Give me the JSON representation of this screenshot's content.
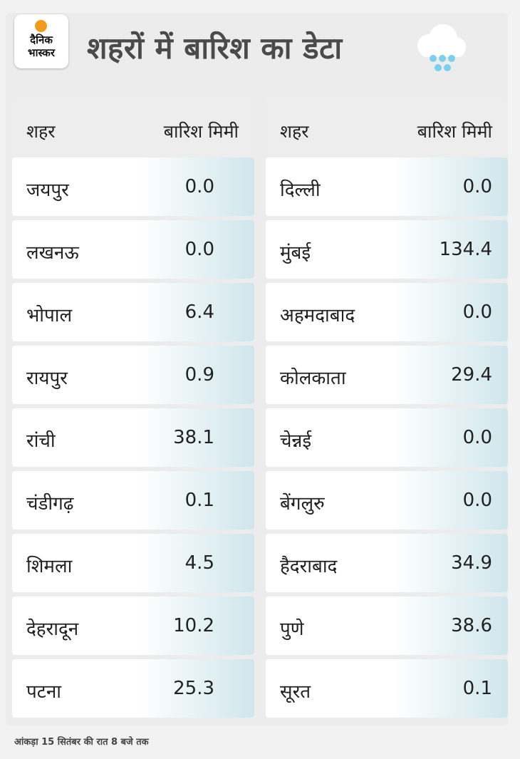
{
  "logo": {
    "line1": "दैनिक",
    "line2": "भास्कर"
  },
  "title": "शहरों में बारिश का डेटा",
  "colors": {
    "accent_orange": "#f39a1e",
    "cloud": "#ffffff",
    "rain_drops": "#7ad0ee",
    "cell_tint": "#cfe6ec"
  },
  "tables": [
    {
      "header_city": "शहर",
      "header_rain": "बारिश मिमी",
      "rows": [
        {
          "city": "जयपुर",
          "rain": "0.0"
        },
        {
          "city": "लखनऊ",
          "rain": "0.0"
        },
        {
          "city": "भोपाल",
          "rain": "6.4"
        },
        {
          "city": "रायपुर",
          "rain": "0.9"
        },
        {
          "city": "रांची",
          "rain": "38.1"
        },
        {
          "city": "चंडीगढ़",
          "rain": "0.1"
        },
        {
          "city": "शिमला",
          "rain": "4.5"
        },
        {
          "city": "देहरादून",
          "rain": "10.2"
        },
        {
          "city": "पटना",
          "rain": "25.3"
        }
      ]
    },
    {
      "header_city": "शहर",
      "header_rain": "बारिश मिमी",
      "rows": [
        {
          "city": "दिल्ली",
          "rain": "0.0"
        },
        {
          "city": "मुंबई",
          "rain": "134.4"
        },
        {
          "city": "अहमदाबाद",
          "rain": "0.0"
        },
        {
          "city": "कोलकाता",
          "rain": "29.4"
        },
        {
          "city": "चेन्नई",
          "rain": "0.0"
        },
        {
          "city": "बेंगलुरु",
          "rain": "0.0"
        },
        {
          "city": "हैदराबाद",
          "rain": "34.9"
        },
        {
          "city": "पुणे",
          "rain": "38.6"
        },
        {
          "city": "सूरत",
          "rain": "0.1"
        }
      ]
    }
  ],
  "footer": "आंकड़ा 15 सितंबर की रात 8 बजे तक"
}
